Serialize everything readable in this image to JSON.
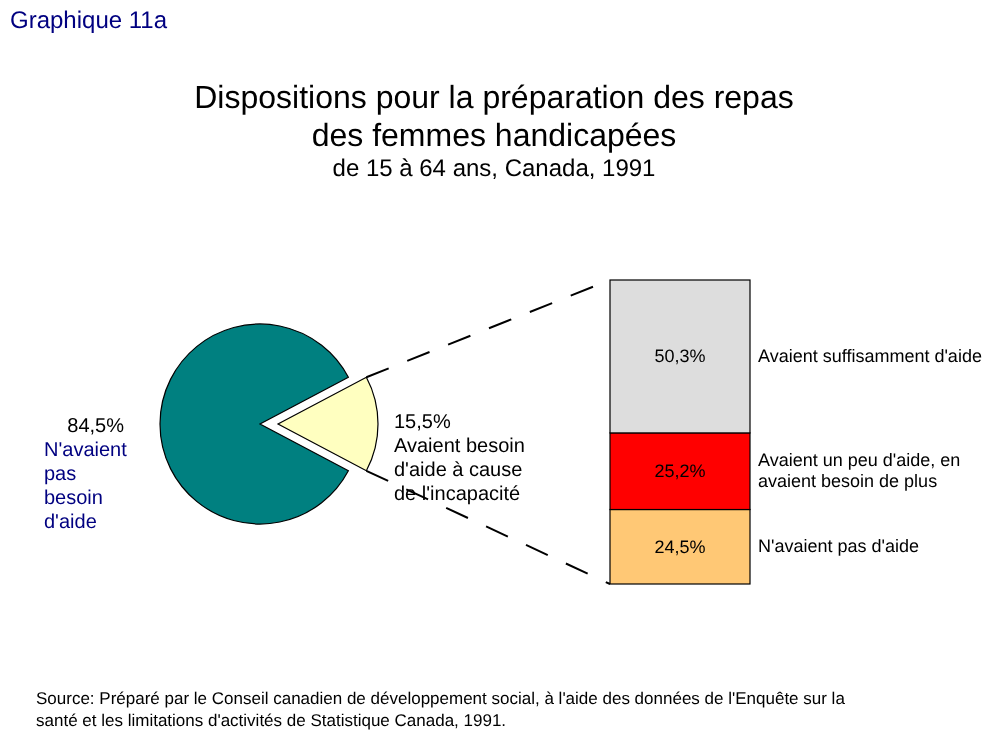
{
  "chart_data": [
    {
      "type": "pie",
      "title": "Dispositions pour la préparation des repas des femmes handicapées",
      "subtitle": "de 15 à 64 ans, Canada, 1991",
      "categories": [
        "N'avaient pas besoin d'aide",
        "Avaient besoin d'aide à cause de l'incapacité"
      ],
      "values": [
        84.5,
        15.5
      ],
      "value_labels": [
        "84,5%",
        "15,5%"
      ],
      "colors": [
        "#008080",
        "#ffffc0"
      ],
      "annotations": [
        "Graphique 11a",
        "Source: Préparé par le Conseil canadien de développement social, à l'aide des données de l'Enquête sur la santé et les limitations d'activités de Statistique Canada, 1991."
      ]
    },
    {
      "type": "bar",
      "stacked": true,
      "categories": [
        null
      ],
      "series": [
        {
          "name": "N'avaient pas d'aide",
          "color": "#ffc875",
          "values": [
            24.5
          ],
          "value_labels": [
            "24,5%"
          ]
        },
        {
          "name": "Avaient un peu d'aide, en avaient besoin de plus",
          "color": "#ff0000",
          "values": [
            25.2
          ],
          "value_labels": [
            "25,2%"
          ]
        },
        {
          "name": "Avaient suffisamment d'aide",
          "color": "#dddddd",
          "values": [
            50.3
          ],
          "value_labels": [
            "50,3%"
          ]
        }
      ]
    }
  ]
}
